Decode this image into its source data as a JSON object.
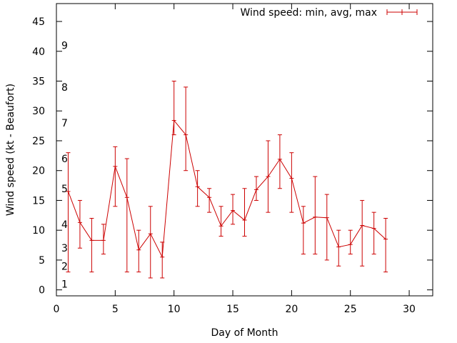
{
  "chart_data": {
    "type": "line",
    "title": "",
    "xlabel": "Day of Month",
    "ylabel": "Wind speed (kt - Beaufort)",
    "xlim": [
      0,
      32
    ],
    "ylim": [
      -1,
      48
    ],
    "xticks": [
      0,
      5,
      10,
      15,
      20,
      25,
      30
    ],
    "yticks": [
      0,
      5,
      10,
      15,
      20,
      25,
      30,
      35,
      40,
      45
    ],
    "legend": {
      "label": "Wind speed: min, avg, max",
      "position": "top-right"
    },
    "series_color": "#cc0000",
    "beaufort": [
      {
        "label": "1",
        "kt": 1
      },
      {
        "label": "2",
        "kt": 4
      },
      {
        "label": "3",
        "kt": 7
      },
      {
        "label": "4",
        "kt": 11
      },
      {
        "label": "5",
        "kt": 17
      },
      {
        "label": "6",
        "kt": 22
      },
      {
        "label": "7",
        "kt": 28
      },
      {
        "label": "8",
        "kt": 34
      },
      {
        "label": "9",
        "kt": 41
      }
    ],
    "series": [
      {
        "name": "Wind speed: min, avg, max",
        "x": [
          1,
          2,
          3,
          4,
          5,
          6,
          7,
          8,
          9,
          10,
          11,
          12,
          13,
          14,
          15,
          16,
          17,
          18,
          19,
          20,
          21,
          22,
          23,
          24,
          25,
          26,
          27,
          28
        ],
        "avg": [
          16.5,
          11.3,
          8.3,
          8.3,
          20.7,
          15.5,
          6.7,
          9.4,
          5.5,
          28.4,
          26,
          17.3,
          15.5,
          10.7,
          13.3,
          11.7,
          16.8,
          19,
          21.9,
          18.7,
          11.2,
          12.2,
          12.1,
          7.2,
          7.6,
          10.8,
          10.3,
          8.5
        ],
        "min": [
          3,
          7,
          3,
          6,
          14,
          3,
          3,
          2,
          2,
          26,
          20,
          14,
          13,
          9,
          11,
          9,
          15,
          13,
          17,
          13,
          6,
          6,
          5,
          4,
          6,
          4,
          6,
          3
        ],
        "max": [
          23,
          15,
          12,
          11,
          24,
          22,
          10,
          14,
          8,
          35,
          34,
          20,
          17,
          14,
          16,
          17,
          19,
          25,
          26,
          23,
          14,
          19,
          16,
          10,
          10,
          15,
          13,
          12
        ]
      }
    ]
  }
}
